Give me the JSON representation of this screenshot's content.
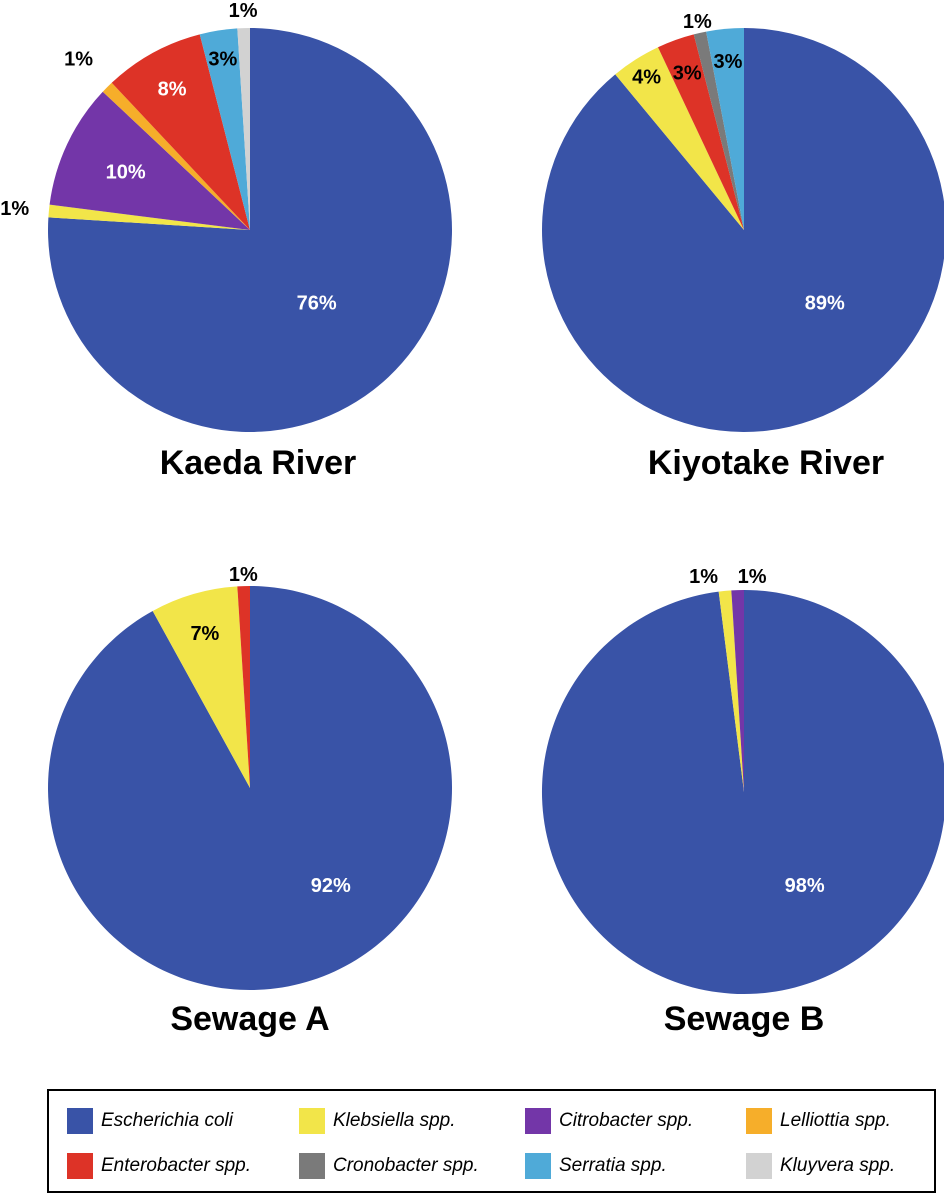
{
  "chart_data": [
    {
      "type": "pie",
      "title": "Kaeda River",
      "categories": [
        "Escherichia coli",
        "Klebsiella spp.",
        "Citrobacter spp.",
        "Lelliottia spp.",
        "Enterobacter spp.",
        "Serratia spp.",
        "Kluyvera spp."
      ],
      "values": [
        76,
        1,
        10,
        1,
        8,
        3,
        1
      ],
      "labels": [
        "76%",
        "1%",
        "10%",
        "1%",
        "8%",
        "3%",
        "1%"
      ]
    },
    {
      "type": "pie",
      "title": "Kiyotake River",
      "categories": [
        "Escherichia coli",
        "Klebsiella spp.",
        "Enterobacter spp.",
        "Cronobacter spp.",
        "Serratia spp."
      ],
      "values": [
        89,
        4,
        3,
        1,
        3
      ],
      "labels": [
        "89%",
        "4%",
        "3%",
        "1%",
        "3%"
      ]
    },
    {
      "type": "pie",
      "title": "Sewage A",
      "categories": [
        "Escherichia coli",
        "Klebsiella spp.",
        "Enterobacter spp."
      ],
      "values": [
        92,
        7,
        1
      ],
      "labels": [
        "92%",
        "7%",
        "1%"
      ]
    },
    {
      "type": "pie",
      "title": "Sewage B",
      "categories": [
        "Escherichia coli",
        "Klebsiella spp.",
        "Citrobacter spp."
      ],
      "values": [
        98,
        1,
        1
      ],
      "labels": [
        "98%",
        "1%",
        "1%"
      ]
    }
  ],
  "legend": [
    {
      "label": "Escherichia coli",
      "color": "#3953a7"
    },
    {
      "label": "Klebsiella spp.",
      "color": "#f2e549"
    },
    {
      "label": "Citrobacter spp.",
      "color": "#7336a8"
    },
    {
      "label": "Lelliottia spp.",
      "color": "#f6ae2a"
    },
    {
      "label": "Enterobacter spp.",
      "color": "#dd3327"
    },
    {
      "label": "Cronobacter spp.",
      "color": "#7a7a7a"
    },
    {
      "label": "Serratia spp.",
      "color": "#4faad8"
    },
    {
      "label": "Kluyvera spp.",
      "color": "#d2d2d2"
    }
  ]
}
